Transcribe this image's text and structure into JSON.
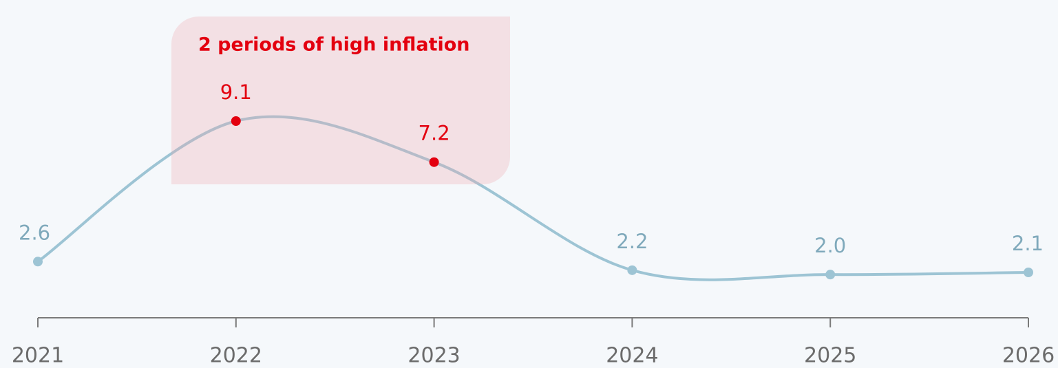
{
  "chart_data": {
    "type": "line",
    "annotation": "2 periods of high inflation",
    "categories": [
      "2021",
      "2022",
      "2023",
      "2024",
      "2025",
      "2026"
    ],
    "series": [
      {
        "color": "#9dc4d4",
        "values": [
          2.6,
          9.1,
          7.2,
          2.2,
          2.0,
          2.1
        ],
        "value_labels": [
          "2.6",
          "9.1",
          "7.2",
          "2.2",
          "2.0",
          "2.1"
        ],
        "point_colors": [
          "#9dc4d4",
          "#e3000f",
          "#e3000f",
          "#9dc4d4",
          "#9dc4d4",
          "#9dc4d4"
        ],
        "label_colors": [
          "#7fa9bb",
          "#e3000f",
          "#e3000f",
          "#7fa9bb",
          "#7fa9bb",
          "#7fa9bb"
        ]
      }
    ],
    "ylim": [
      0,
      14.7
    ]
  }
}
